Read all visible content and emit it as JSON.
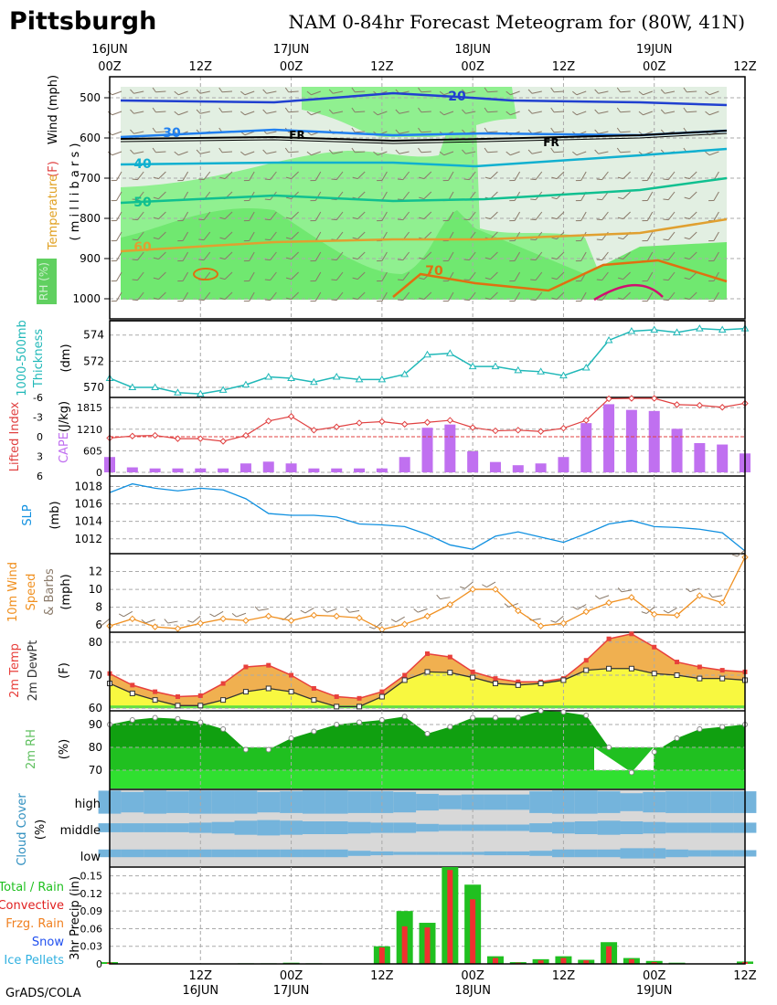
{
  "header": {
    "location": "Pittsburgh",
    "title": "NAM 0-84hr Forecast Meteogram for (80W, 41N)",
    "credit": "GrADS/COLA"
  },
  "colors": {
    "temp": "#e8403c",
    "dewpt": "#333333",
    "thickness": "#20b8b8",
    "cape": "#c070f0",
    "lifted": "#e04040",
    "slp": "#1090e0",
    "wind10": "#f09020",
    "barb": "#8a7a6a",
    "rh_dark": "#10a010",
    "rh_mid": "#20c020",
    "rh_light": "#30e030",
    "cloud": "#74b4dc",
    "cloud_gray": "#d8d8d8",
    "precip_total": "#20c020",
    "precip_conv": "#f03030",
    "temp_fill": "#f0b050",
    "dew_fill": "#f8f840"
  },
  "time_axis": {
    "top_hours": [
      "00Z",
      "12Z",
      "00Z",
      "12Z",
      "00Z",
      "12Z",
      "00Z",
      "12Z"
    ],
    "top_dates": [
      "16JUN",
      "",
      "17JUN",
      "",
      "18JUN",
      "",
      "19JUN",
      ""
    ],
    "bottom_hours": [
      "12Z",
      "00Z",
      "12Z",
      "00Z",
      "12Z",
      "00Z",
      "12Z"
    ],
    "bottom_dates": [
      "16JUN",
      "17JUN",
      "",
      "18JUN",
      "",
      "19JUN",
      ""
    ]
  },
  "panels": {
    "profile": {
      "label_wind": "Wind (mph)",
      "label_temp": "Temperature",
      "label_f": "(F)",
      "label_mb": "( m i l l i b a r s )",
      "label_rh": "RH (%)",
      "levels": [
        "500",
        "600",
        "700",
        "800",
        "900",
        "1000"
      ],
      "temp_contours": [
        "20",
        "30",
        "40",
        "50",
        "60",
        "70"
      ],
      "freezing": "FR"
    },
    "thickness": {
      "label1": "1000-500mb",
      "label2": "Thickness",
      "unit": "(dm)",
      "ticks": [
        "574",
        "572",
        "570"
      ]
    },
    "lifted": {
      "label1": "Lifted Index",
      "label2": "CAPE",
      "unit": "(J/kg)",
      "li_ticks": [
        "-6",
        "-3",
        "0",
        "3",
        "6"
      ],
      "cape_ticks": [
        "1815",
        "1210",
        "605",
        "0"
      ]
    },
    "slp": {
      "label": "SLP",
      "unit": "(mb)",
      "ticks": [
        "1018",
        "1016",
        "1014",
        "1012"
      ]
    },
    "wind": {
      "label1": "10m Wind",
      "label2": "Speed",
      "label3": "& Barbs",
      "unit": "(mph)",
      "ticks": [
        "12",
        "10",
        "8",
        "6"
      ]
    },
    "temp2m": {
      "label1": "2m Temp",
      "label2": "2m DewPt",
      "unit": "(F)",
      "ticks": [
        "80",
        "70",
        "60"
      ]
    },
    "rh2m": {
      "label": "2m RH",
      "unit": "(%)",
      "ticks": [
        "90",
        "80",
        "70"
      ]
    },
    "cloud": {
      "label": "Cloud Cover",
      "unit": "(%)",
      "ticks": [
        "high",
        "middle",
        "low"
      ]
    },
    "precip": {
      "label": "3hr Precip (in)",
      "ticks": [
        "0.15",
        "0.12",
        "0.09",
        "0.06",
        "0.03",
        "0"
      ],
      "legend": [
        "Total / Rain",
        "Convective",
        "Frzg. Rain",
        "Snow",
        "Ice Pellets"
      ]
    }
  },
  "chart_data": [
    {
      "type": "line",
      "title": "1000-500mb Thickness",
      "ylabel": "(dm)",
      "ylim": [
        569.3,
        575.1
      ],
      "x_hours": [
        0,
        3,
        6,
        9,
        12,
        15,
        18,
        21,
        24,
        27,
        30,
        33,
        36,
        39,
        42,
        45,
        48,
        51,
        54,
        57,
        60,
        63,
        66,
        69,
        72,
        75,
        78,
        81,
        84
      ],
      "values": [
        570.7,
        570.0,
        570.0,
        569.6,
        569.5,
        569.8,
        570.2,
        570.8,
        570.7,
        570.4,
        570.8,
        570.6,
        570.6,
        571.0,
        572.5,
        572.6,
        571.6,
        571.6,
        571.3,
        571.2,
        570.9,
        571.5,
        573.6,
        574.3,
        574.4,
        574.2,
        574.5,
        574.4,
        574.5
      ]
    },
    {
      "type": "bar",
      "title": "CAPE",
      "ylabel": "(J/kg)",
      "ylim": [
        0,
        2100
      ],
      "x_hours": [
        0,
        3,
        6,
        9,
        12,
        15,
        18,
        21,
        24,
        27,
        30,
        33,
        36,
        39,
        42,
        45,
        48,
        51,
        54,
        57,
        60,
        63,
        66,
        69,
        72,
        75,
        78,
        81,
        84
      ],
      "values": [
        430,
        140,
        110,
        110,
        110,
        110,
        250,
        300,
        250,
        110,
        110,
        110,
        110,
        430,
        1250,
        1340,
        590,
        290,
        200,
        250,
        430,
        1380,
        1910,
        1750,
        1720,
        1220,
        820,
        780,
        530
      ]
    },
    {
      "type": "line",
      "title": "Lifted Index",
      "ylim": [
        6,
        -6
      ],
      "x_hours": [
        0,
        3,
        6,
        9,
        12,
        15,
        18,
        21,
        24,
        27,
        30,
        33,
        36,
        39,
        42,
        45,
        48,
        51,
        54,
        57,
        60,
        63,
        66,
        69,
        72,
        75,
        78,
        81,
        84
      ],
      "values": [
        0.2,
        -0.1,
        -0.2,
        0.3,
        0.3,
        0.7,
        -0.2,
        -2.4,
        -3.1,
        -1.0,
        -1.5,
        -2.1,
        -2.3,
        -1.9,
        -2.2,
        -2.5,
        -1.4,
        -0.9,
        -1.0,
        -0.8,
        -1.3,
        -2.5,
        -5.8,
        -6.2,
        -6.0,
        -4.9,
        -4.8,
        -4.5,
        -5.1
      ]
    },
    {
      "type": "line",
      "title": "SLP",
      "ylabel": "(mb)",
      "ylim": [
        1010.3,
        1019.2
      ],
      "x_hours": [
        0,
        3,
        6,
        9,
        12,
        15,
        18,
        21,
        24,
        27,
        30,
        33,
        36,
        39,
        42,
        45,
        48,
        51,
        54,
        57,
        60,
        63,
        66,
        69,
        72,
        75,
        78,
        81,
        84
      ],
      "values": [
        1017.3,
        1018.3,
        1017.8,
        1017.5,
        1017.8,
        1017.6,
        1016.6,
        1014.9,
        1014.7,
        1014.7,
        1014.5,
        1013.7,
        1013.6,
        1013.4,
        1012.5,
        1011.3,
        1010.8,
        1012.3,
        1012.8,
        1012.2,
        1011.6,
        1012.6,
        1013.7,
        1014.1,
        1013.4,
        1013.3,
        1013.1,
        1012.7,
        1010.6
      ]
    },
    {
      "type": "line",
      "title": "10m Wind Speed",
      "ylabel": "(mph)",
      "ylim": [
        5.3,
        14
      ],
      "x_hours": [
        0,
        3,
        6,
        9,
        12,
        15,
        18,
        21,
        24,
        27,
        30,
        33,
        36,
        39,
        42,
        45,
        48,
        51,
        54,
        57,
        60,
        63,
        66,
        69,
        72,
        75,
        78,
        81,
        84
      ],
      "values": [
        5.9,
        6.7,
        5.8,
        5.6,
        6.2,
        6.7,
        6.5,
        7.0,
        6.5,
        7.1,
        7.0,
        6.8,
        5.5,
        6.1,
        7.0,
        8.3,
        10.0,
        10.0,
        7.6,
        5.9,
        6.2,
        7.5,
        8.5,
        9.1,
        7.2,
        7.1,
        9.3,
        8.5,
        13.6
      ]
    },
    {
      "type": "area",
      "title": "2m Temp",
      "ylabel": "(F)",
      "ylim": [
        59.5,
        83
      ],
      "x_hours": [
        0,
        3,
        6,
        9,
        12,
        15,
        18,
        21,
        24,
        27,
        30,
        33,
        36,
        39,
        42,
        45,
        48,
        51,
        54,
        57,
        60,
        63,
        66,
        69,
        72,
        75,
        78,
        81,
        84
      ],
      "series": [
        {
          "name": "2m Temp",
          "values": [
            70.5,
            67.0,
            65.0,
            63.5,
            63.8,
            67.5,
            72.5,
            73.0,
            70.0,
            66.0,
            63.5,
            63.0,
            65.0,
            70.0,
            76.5,
            75.5,
            71.0,
            69.0,
            68.0,
            68.0,
            69.0,
            74.5,
            81.0,
            82.5,
            78.5,
            74.0,
            72.5,
            71.5,
            71.0
          ]
        },
        {
          "name": "2m DewPt",
          "values": [
            67.5,
            64.5,
            62.5,
            60.8,
            60.8,
            62.5,
            65.0,
            66.0,
            65.0,
            62.5,
            60.5,
            60.5,
            63.5,
            68.5,
            71.0,
            70.8,
            69.3,
            67.5,
            67.0,
            67.5,
            68.5,
            71.5,
            72.0,
            72.0,
            70.5,
            70.0,
            69.0,
            69.0,
            68.5
          ]
        }
      ]
    },
    {
      "type": "area",
      "title": "2m RH",
      "ylabel": "(%)",
      "ylim": [
        62,
        96
      ],
      "x_hours": [
        0,
        3,
        6,
        9,
        12,
        15,
        18,
        21,
        24,
        27,
        30,
        33,
        36,
        39,
        42,
        45,
        48,
        51,
        54,
        57,
        60,
        63,
        66,
        69,
        72,
        75,
        78,
        81,
        84
      ],
      "values": [
        90,
        92,
        93,
        92.5,
        91,
        88,
        79,
        79,
        84,
        87,
        90,
        91,
        92,
        93.5,
        86,
        89,
        93,
        93,
        93,
        96,
        95.5,
        94,
        80,
        69,
        78,
        84,
        88,
        89,
        90
      ]
    },
    {
      "type": "bar",
      "title": "3hr Precip",
      "ylabel": "(in)",
      "ylim": [
        0,
        0.165
      ],
      "x_hours": [
        0,
        3,
        6,
        9,
        12,
        15,
        18,
        21,
        24,
        27,
        30,
        33,
        36,
        39,
        42,
        45,
        48,
        51,
        54,
        57,
        60,
        63,
        66,
        69,
        72,
        75,
        78,
        81,
        84
      ],
      "series": [
        {
          "name": "Total / Rain",
          "values": [
            0.003,
            0,
            0,
            0,
            0,
            0,
            0.001,
            0.001,
            0.002,
            0.001,
            0,
            0,
            0.03,
            0.09,
            0.07,
            0.165,
            0.135,
            0.013,
            0.003,
            0.008,
            0.013,
            0.007,
            0.037,
            0.01,
            0.005,
            0.002,
            0,
            0,
            0.004
          ]
        },
        {
          "name": "Convective",
          "values": [
            0.002,
            0,
            0,
            0,
            0,
            0,
            0,
            0,
            0.001,
            0,
            0,
            0,
            0.028,
            0.064,
            0.062,
            0.16,
            0.11,
            0.01,
            0.002,
            0.006,
            0.01,
            0.006,
            0.03,
            0.008,
            0.003,
            0,
            0,
            0,
            0.003
          ]
        }
      ]
    },
    {
      "type": "heatmap",
      "title": "Cloud Cover",
      "ylabel": "(%)",
      "x_hours": [
        0,
        3,
        6,
        9,
        12,
        15,
        18,
        21,
        24,
        27,
        30,
        33,
        36,
        39,
        42,
        45,
        48,
        51,
        54,
        57,
        60,
        63,
        66,
        69,
        72,
        75,
        78,
        81,
        84
      ],
      "series": [
        {
          "name": "high",
          "values": [
            90,
            80,
            90,
            85,
            90,
            90,
            90,
            80,
            85,
            90,
            90,
            85,
            85,
            80,
            65,
            55,
            60,
            60,
            60,
            85,
            90,
            90,
            85,
            70,
            80,
            85,
            85,
            85,
            85
          ]
        },
        {
          "name": "middle",
          "values": [
            35,
            35,
            35,
            35,
            40,
            45,
            55,
            60,
            55,
            50,
            50,
            45,
            40,
            40,
            30,
            25,
            25,
            25,
            25,
            35,
            45,
            50,
            55,
            50,
            45,
            40,
            40,
            40,
            40
          ]
        },
        {
          "name": "low",
          "values": [
            30,
            30,
            30,
            30,
            30,
            30,
            30,
            30,
            30,
            30,
            30,
            20,
            15,
            12,
            12,
            12,
            12,
            15,
            15,
            20,
            30,
            30,
            30,
            40,
            40,
            30,
            25,
            25,
            25
          ]
        }
      ]
    }
  ]
}
